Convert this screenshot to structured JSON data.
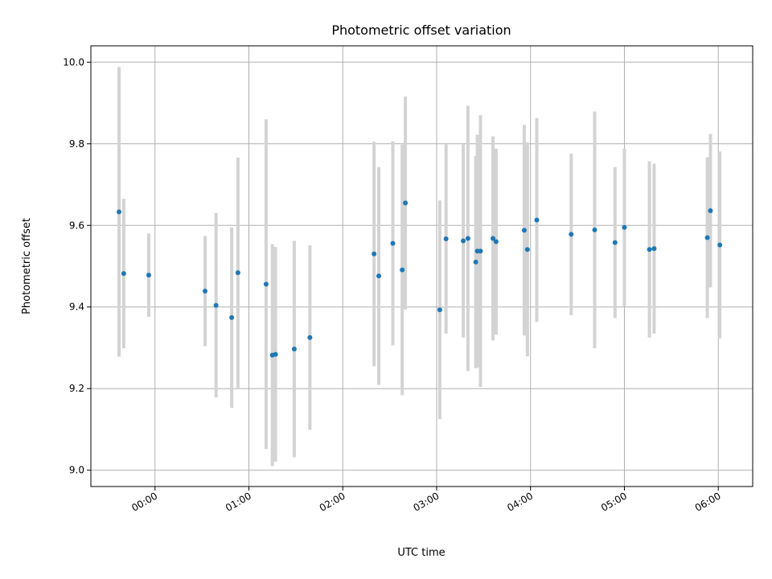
{
  "chart_data": {
    "type": "scatter",
    "title": "Photometric offset variation",
    "xlabel": "UTC time",
    "ylabel": "Photometric offset",
    "x_ticks": [
      "00:00",
      "01:00",
      "02:00",
      "03:00",
      "04:00",
      "05:00",
      "06:00"
    ],
    "y_ticks": [
      "9.0",
      "9.2",
      "9.4",
      "9.6",
      "9.8",
      "10.0"
    ],
    "ylim": [
      8.96,
      10.04
    ],
    "xlim": [
      "23:19",
      "06:22"
    ],
    "grid": true,
    "colors": {
      "point": "#1f77b4",
      "errorbar": "#d3d3d3",
      "grid": "#b0b0b0"
    },
    "points": [
      {
        "t": "23:37",
        "y": 9.633,
        "err": 0.355
      },
      {
        "t": "23:40",
        "y": 9.482,
        "err": 0.183
      },
      {
        "t": "23:56",
        "y": 9.478,
        "err": 0.102
      },
      {
        "t": "00:32",
        "y": 9.439,
        "err": 0.135
      },
      {
        "t": "00:39",
        "y": 9.404,
        "err": 0.226
      },
      {
        "t": "00:49",
        "y": 9.374,
        "err": 0.221
      },
      {
        "t": "00:53",
        "y": 9.484,
        "err": 0.282
      },
      {
        "t": "01:11",
        "y": 9.456,
        "err": 0.404
      },
      {
        "t": "01:15",
        "y": 9.282,
        "err": 0.272
      },
      {
        "t": "01:17",
        "y": 9.284,
        "err": 0.263
      },
      {
        "t": "01:29",
        "y": 9.297,
        "err": 0.265
      },
      {
        "t": "01:39",
        "y": 9.325,
        "err": 0.226
      },
      {
        "t": "02:20",
        "y": 9.53,
        "err": 0.275
      },
      {
        "t": "02:23",
        "y": 9.476,
        "err": 0.267
      },
      {
        "t": "02:32",
        "y": 9.556,
        "err": 0.25
      },
      {
        "t": "02:38",
        "y": 9.491,
        "err": 0.307
      },
      {
        "t": "02:40",
        "y": 9.655,
        "err": 0.261
      },
      {
        "t": "03:02",
        "y": 9.393,
        "err": 0.268
      },
      {
        "t": "03:06",
        "y": 9.567,
        "err": 0.232
      },
      {
        "t": "03:17",
        "y": 9.562,
        "err": 0.237
      },
      {
        "t": "03:20",
        "y": 9.568,
        "err": 0.325
      },
      {
        "t": "03:25",
        "y": 9.51,
        "err": 0.26
      },
      {
        "t": "03:26",
        "y": 9.537,
        "err": 0.285
      },
      {
        "t": "03:28",
        "y": 9.537,
        "err": 0.333
      },
      {
        "t": "03:36",
        "y": 9.568,
        "err": 0.25
      },
      {
        "t": "03:38",
        "y": 9.56,
        "err": 0.228
      },
      {
        "t": "03:56",
        "y": 9.588,
        "err": 0.258
      },
      {
        "t": "03:58",
        "y": 9.541,
        "err": 0.262
      },
      {
        "t": "04:04",
        "y": 9.613,
        "err": 0.25
      },
      {
        "t": "04:26",
        "y": 9.578,
        "err": 0.198
      },
      {
        "t": "04:41",
        "y": 9.589,
        "err": 0.29
      },
      {
        "t": "04:54",
        "y": 9.558,
        "err": 0.185
      },
      {
        "t": "05:00",
        "y": 9.595,
        "err": 0.193
      },
      {
        "t": "05:16",
        "y": 9.541,
        "err": 0.216
      },
      {
        "t": "05:19",
        "y": 9.543,
        "err": 0.208
      },
      {
        "t": "05:53",
        "y": 9.57,
        "err": 0.197
      },
      {
        "t": "05:55",
        "y": 9.636,
        "err": 0.188
      },
      {
        "t": "06:01",
        "y": 9.552,
        "err": 0.229
      }
    ]
  }
}
